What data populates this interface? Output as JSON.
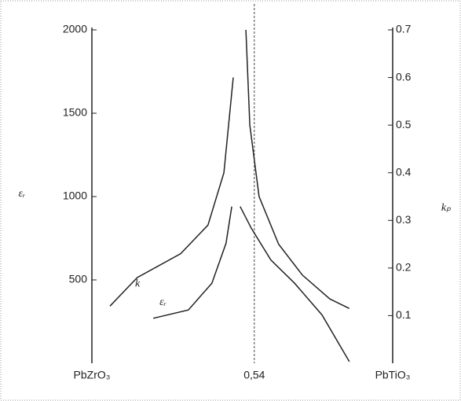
{
  "chart_data": {
    "type": "line",
    "y_label": "εᵣ",
    "y2_label": "kₚ",
    "xlim": [
      0,
      1
    ],
    "xticks": [
      {
        "value": 0,
        "label": "PbZrO₃"
      },
      {
        "value": 0.54,
        "label": "0,54"
      },
      {
        "value": 1,
        "label": "PbTiO₃"
      }
    ],
    "ylim": [
      0,
      2000
    ],
    "yticks": [
      500,
      1000,
      1500,
      2000
    ],
    "y2lim": [
      0,
      0.7
    ],
    "y2ticks": [
      0.1,
      0.2,
      0.3,
      0.4,
      0.5,
      0.6,
      0.7
    ],
    "series": [
      {
        "name": "k",
        "axis": "y2",
        "color": "#222222",
        "x": [
          0.06,
          0.151,
          0.295,
          0.386,
          0.439,
          0.47,
          null,
          0.512,
          0.525,
          0.556,
          0.621,
          0.7,
          0.791,
          0.856
        ],
        "values": [
          0.12,
          0.18,
          0.23,
          0.29,
          0.4,
          0.6,
          null,
          0.7,
          0.5,
          0.35,
          0.25,
          0.185,
          0.135,
          0.115
        ]
      },
      {
        "name": "εᵣ",
        "axis": "y",
        "color": "#222222",
        "x": [
          0.204,
          0.321,
          0.399,
          0.446,
          0.465,
          null,
          0.493,
          0.53,
          0.595,
          0.674,
          0.765,
          0.856
        ],
        "values": [
          270,
          320,
          480,
          720,
          940,
          null,
          940,
          810,
          620,
          480,
          290,
          10
        ]
      }
    ]
  }
}
